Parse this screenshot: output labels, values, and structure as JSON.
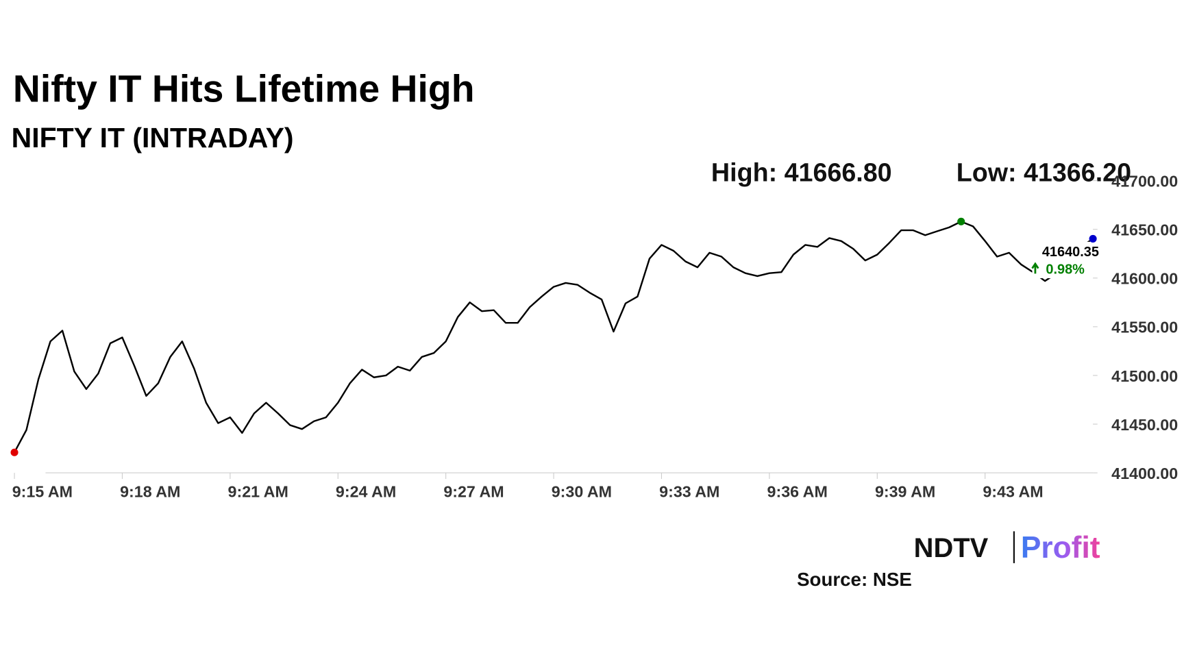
{
  "chart_data": {
    "type": "line",
    "title": "Nifty IT Hits Lifetime High",
    "subtitle": "NIFTY IT (INTRADAY)",
    "high_label": "High: 41666.80",
    "low_label": "Low: 41366.20",
    "categories": [
      "9:15 AM",
      null,
      null,
      null,
      null,
      null,
      null,
      null,
      null,
      "9:18 AM",
      null,
      null,
      null,
      null,
      null,
      null,
      null,
      null,
      "9:21 AM",
      null,
      null,
      null,
      null,
      null,
      null,
      null,
      null,
      "9:24 AM",
      null,
      null,
      null,
      null,
      null,
      null,
      null,
      null,
      "9:27 AM",
      null,
      null,
      null,
      null,
      null,
      null,
      null,
      null,
      "9:30 AM",
      null,
      null,
      null,
      null,
      null,
      null,
      null,
      null,
      "9:33 AM",
      null,
      null,
      null,
      null,
      null,
      null,
      null,
      null,
      "9:36 AM",
      null,
      null,
      null,
      null,
      null,
      null,
      null,
      null,
      "9:39 AM",
      null,
      null,
      null,
      null,
      null,
      null,
      null,
      null,
      "9:43 AM",
      null,
      null,
      null,
      null,
      null,
      null,
      null,
      null,
      null
    ],
    "values": [
      41421,
      41444,
      41496,
      41535,
      41546,
      41504,
      41486,
      41502,
      41533,
      41539,
      41510,
      41479,
      41492,
      41519,
      41535,
      41507,
      41472,
      41451,
      41457,
      41441,
      41461,
      41472,
      41461,
      41449,
      41445,
      41453,
      41457,
      41472,
      41492,
      41506,
      41498,
      41500,
      41509,
      41505,
      41519,
      41523,
      41535,
      41560,
      41575,
      41566,
      41567,
      41554,
      41554,
      41570,
      41581,
      41591,
      41595,
      41593,
      41585,
      41578,
      41545,
      41574,
      41581,
      41620,
      41634,
      41628,
      41617,
      41611,
      41626,
      41622,
      41611,
      41605,
      41602,
      41605,
      41606,
      41624,
      41634,
      41632,
      41641,
      41638,
      41630,
      41618,
      41624,
      41636,
      41649,
      41649,
      41644,
      41648,
      41652,
      41658,
      41653,
      41638,
      41622,
      41626,
      41614,
      41606,
      41597,
      41605,
      41620,
      41632,
      41640.35
    ],
    "color": "#000000",
    "start_marker_color": "#e00000",
    "high_marker_color": "#008000",
    "last_marker_color": "#0000cc",
    "change_label": "0.98%",
    "change_color": "#008000",
    "ylim": [
      41400,
      41700
    ],
    "yticks": [
      {
        "value": 41400,
        "label": "41400.00"
      },
      {
        "value": 41450,
        "label": "41450.00"
      },
      {
        "value": 41500,
        "label": "41500.00"
      },
      {
        "value": 41550,
        "label": "41550.00"
      },
      {
        "value": 41600,
        "label": "41600.00"
      },
      {
        "value": 41650,
        "label": "41650.00"
      },
      {
        "value": 41700,
        "label": "41700.00"
      }
    ],
    "grid": false
  },
  "logo": {
    "brand": "NDTV",
    "product": "Profit"
  },
  "source": "Source: NSE"
}
